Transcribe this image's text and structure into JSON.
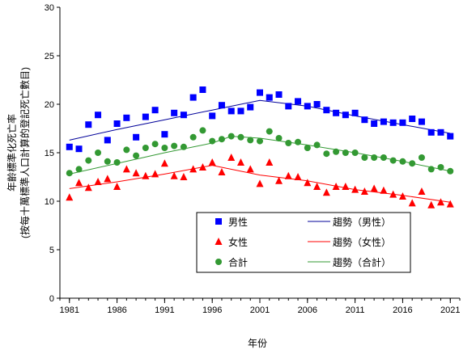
{
  "chart_data": {
    "type": "scatter",
    "title": "",
    "xlabel": "年份",
    "ylabel_lines": [
      "年齡標準化死亡率",
      "(按每十萬標準人口計算的登記死亡數目)"
    ],
    "xlim": [
      1980,
      2022
    ],
    "ylim": [
      0,
      30
    ],
    "x_ticks": [
      1981,
      1986,
      1991,
      1996,
      2001,
      2006,
      2011,
      2016,
      2021
    ],
    "y_ticks": [
      0,
      5,
      10,
      15,
      20,
      25,
      30
    ],
    "grid": false,
    "legend_position": "bottom-center",
    "x": [
      1981,
      1982,
      1983,
      1984,
      1985,
      1986,
      1987,
      1988,
      1989,
      1990,
      1991,
      1992,
      1993,
      1994,
      1995,
      1996,
      1997,
      1998,
      1999,
      2000,
      2001,
      2002,
      2003,
      2004,
      2005,
      2006,
      2007,
      2008,
      2009,
      2010,
      2011,
      2012,
      2013,
      2014,
      2015,
      2016,
      2017,
      2018,
      2019,
      2020,
      2021
    ],
    "series": [
      {
        "name": "男性",
        "marker": "square",
        "color": "#0000FF",
        "values": [
          15.6,
          15.4,
          17.9,
          18.9,
          16.3,
          18.0,
          18.6,
          16.6,
          18.7,
          19.4,
          16.9,
          19.1,
          18.9,
          20.7,
          21.5,
          18.8,
          19.9,
          19.3,
          19.3,
          19.7,
          21.2,
          20.7,
          21.0,
          19.8,
          20.3,
          19.8,
          20.0,
          19.4,
          19.1,
          18.9,
          19.1,
          18.4,
          18.0,
          18.2,
          18.1,
          18.1,
          18.5,
          18.2,
          17.1,
          17.1,
          16.7
        ]
      },
      {
        "name": "女性",
        "marker": "triangle",
        "color": "#FF0000",
        "values": [
          10.4,
          11.9,
          11.4,
          12.0,
          12.3,
          11.5,
          13.3,
          12.9,
          12.6,
          12.8,
          13.9,
          12.6,
          12.5,
          13.3,
          13.5,
          14.0,
          13.0,
          14.5,
          14.0,
          13.3,
          11.8,
          14.0,
          12.1,
          12.6,
          12.5,
          11.9,
          11.5,
          10.9,
          11.5,
          11.5,
          11.2,
          11.0,
          11.3,
          11.1,
          10.7,
          10.5,
          9.8,
          11.0,
          9.6,
          9.9,
          9.7
        ]
      },
      {
        "name": "合計",
        "marker": "circle",
        "color": "#339933",
        "values": [
          12.9,
          13.3,
          14.2,
          15.0,
          14.1,
          14.0,
          15.3,
          14.7,
          15.5,
          15.9,
          15.5,
          15.7,
          15.6,
          16.6,
          17.3,
          16.2,
          16.4,
          16.7,
          16.6,
          16.3,
          16.2,
          17.2,
          16.5,
          16.0,
          16.1,
          15.5,
          15.8,
          14.9,
          15.1,
          15.0,
          15.0,
          14.5,
          14.5,
          14.5,
          14.2,
          14.1,
          13.9,
          14.5,
          13.3,
          13.5,
          13.1
        ]
      }
    ],
    "trends": [
      {
        "name": "趨勢（男性）",
        "color": "#000099",
        "x": [
          1981,
          1986,
          1991,
          1996,
          2001,
          2006,
          2011,
          2016,
          2021
        ],
        "values": [
          16.3,
          17.4,
          18.4,
          19.4,
          20.4,
          19.8,
          18.8,
          17.9,
          17.0
        ]
      },
      {
        "name": "趨勢（女性）",
        "color": "#FF0000",
        "x": [
          1981,
          1986,
          1991,
          1996,
          2001,
          2006,
          2011,
          2016,
          2021
        ],
        "values": [
          11.3,
          12.0,
          12.8,
          13.7,
          12.7,
          12.1,
          11.2,
          10.6,
          9.9
        ]
      },
      {
        "name": "趨勢（合計）",
        "color": "#339933",
        "x": [
          1981,
          1986,
          1991,
          1996,
          1998,
          2001,
          2006,
          2011,
          2016,
          2021
        ],
        "values": [
          12.8,
          13.9,
          15.0,
          16.0,
          16.7,
          16.5,
          15.8,
          15.0,
          14.1,
          13.1
        ]
      }
    ],
    "legend": {
      "series_labels": [
        "男性",
        "女性",
        "合計"
      ],
      "trend_labels": [
        "趨勢（男性）",
        "趨勢（女性）",
        "趨勢（合計）"
      ]
    }
  }
}
